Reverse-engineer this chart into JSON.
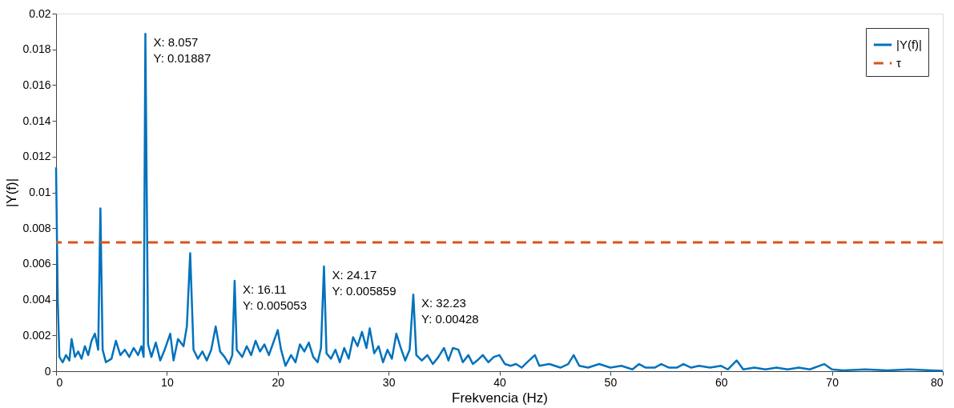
{
  "chart_data": {
    "type": "line",
    "xlabel": "Frekvencia (Hz)",
    "ylabel": "|Y(f)|",
    "xlim": [
      0,
      80
    ],
    "ylim": [
      0,
      0.02
    ],
    "xticks": [
      0,
      10,
      20,
      30,
      40,
      50,
      60,
      70,
      80
    ],
    "yticks": [
      0,
      0.002,
      0.004,
      0.006,
      0.008,
      0.01,
      0.012,
      0.014,
      0.016,
      0.018,
      0.02
    ],
    "grid": false,
    "legend": "top right",
    "marker": "none",
    "line_style": "solid",
    "series": [
      {
        "name": "|Y(f)|",
        "color": "#0072bd",
        "x": [
          0,
          0.15,
          0.3,
          0.6,
          0.9,
          1.2,
          1.4,
          1.7,
          2.0,
          2.3,
          2.6,
          2.9,
          3.2,
          3.5,
          3.8,
          4.0,
          4.2,
          4.5,
          5.0,
          5.4,
          5.8,
          6.2,
          6.6,
          7.0,
          7.4,
          7.7,
          7.9,
          8.057,
          8.3,
          8.6,
          9.0,
          9.4,
          9.8,
          10.3,
          10.6,
          11.0,
          11.5,
          11.8,
          12.1,
          12.4,
          12.8,
          13.2,
          13.6,
          14.0,
          14.4,
          14.8,
          15.2,
          15.6,
          15.9,
          16.11,
          16.3,
          16.8,
          17.2,
          17.6,
          18.0,
          18.4,
          18.8,
          19.2,
          19.6,
          20.0,
          20.3,
          20.7,
          21.2,
          21.6,
          22.0,
          22.4,
          22.8,
          23.2,
          23.6,
          23.9,
          24.17,
          24.4,
          24.8,
          25.2,
          25.6,
          26.0,
          26.4,
          26.8,
          27.2,
          27.6,
          28.0,
          28.3,
          28.7,
          29.1,
          29.5,
          29.9,
          30.3,
          30.7,
          31.1,
          31.5,
          31.9,
          32.23,
          32.5,
          33.0,
          33.5,
          34.0,
          34.5,
          35.0,
          35.4,
          35.8,
          36.3,
          36.7,
          37.2,
          37.6,
          38.0,
          38.5,
          39.0,
          39.5,
          40.0,
          40.5,
          41.0,
          41.5,
          42.0,
          42.5,
          43.2,
          43.6,
          44.5,
          45.5,
          46.2,
          46.7,
          47.2,
          48.0,
          49.0,
          50.0,
          51.0,
          52.0,
          52.6,
          53.2,
          54.0,
          54.6,
          55.3,
          56.0,
          56.6,
          57.3,
          58.0,
          59.0,
          60.0,
          60.6,
          61.4,
          62.0,
          63.0,
          64.0,
          65.0,
          66.0,
          67.0,
          68.0,
          69.3,
          70.0,
          71.0,
          73.0,
          75.0,
          77.0,
          79.0,
          80.0
        ],
        "values": [
          0.0114,
          0.004,
          0.0008,
          0.0005,
          0.0009,
          0.0006,
          0.0018,
          0.0008,
          0.0011,
          0.0007,
          0.0014,
          0.0009,
          0.0017,
          0.0021,
          0.0012,
          0.0091,
          0.0012,
          0.0005,
          0.0007,
          0.0017,
          0.0009,
          0.0012,
          0.0008,
          0.0013,
          0.0009,
          0.0014,
          0.0008,
          0.01887,
          0.0015,
          0.0008,
          0.0016,
          0.0006,
          0.0012,
          0.0021,
          0.0006,
          0.0018,
          0.0014,
          0.0025,
          0.0066,
          0.0012,
          0.0007,
          0.0011,
          0.0006,
          0.0012,
          0.0025,
          0.0011,
          0.0008,
          0.0004,
          0.0009,
          0.005053,
          0.0012,
          0.0008,
          0.0014,
          0.0009,
          0.0017,
          0.0011,
          0.0015,
          0.0009,
          0.0016,
          0.0023,
          0.0012,
          0.0003,
          0.0009,
          0.0005,
          0.0015,
          0.0011,
          0.0016,
          0.0008,
          0.0005,
          0.0013,
          0.005859,
          0.001,
          0.0007,
          0.0012,
          0.0005,
          0.0013,
          0.0007,
          0.0019,
          0.0014,
          0.0022,
          0.0013,
          0.0024,
          0.001,
          0.0014,
          0.0005,
          0.0012,
          0.0007,
          0.0021,
          0.0013,
          0.0006,
          0.0012,
          0.00428,
          0.0009,
          0.0006,
          0.0009,
          0.0004,
          0.0008,
          0.0013,
          0.0006,
          0.0013,
          0.0012,
          0.0005,
          0.0009,
          0.0004,
          0.0006,
          0.0009,
          0.0005,
          0.0008,
          0.0009,
          0.0004,
          0.0003,
          0.0004,
          0.0002,
          0.0005,
          0.0009,
          0.0003,
          0.0004,
          0.0002,
          0.0004,
          0.0009,
          0.0003,
          0.0002,
          0.0004,
          0.0002,
          0.0003,
          0.0001,
          0.0004,
          0.0002,
          0.0002,
          0.0004,
          0.0002,
          0.0002,
          0.0004,
          0.0002,
          0.0003,
          0.0002,
          0.0003,
          0.0001,
          0.0006,
          0.0001,
          0.0002,
          0.0001,
          0.0002,
          0.0001,
          0.0002,
          0.0001,
          0.0004,
          0.0001,
          5e-05,
          0.0001,
          5e-05,
          0.0001,
          5e-05,
          2e-05
        ]
      }
    ],
    "ref_lines": [
      {
        "axis": "y",
        "value": 0.0072,
        "label": "τ",
        "color": "#d95319",
        "line_style": "dashed"
      }
    ],
    "annotations": [
      {
        "text": "X: 8.057\nY: 0.01887",
        "x": 8.057,
        "y": 0.01887
      },
      {
        "text": "X: 16.11\nY: 0.005053",
        "x": 16.11,
        "y": 0.005053
      },
      {
        "text": "X: 24.17\nY: 0.005859",
        "x": 24.17,
        "y": 0.005859
      },
      {
        "text": "X: 32.23\nY: 0.00428",
        "x": 32.23,
        "y": 0.00428
      }
    ]
  }
}
